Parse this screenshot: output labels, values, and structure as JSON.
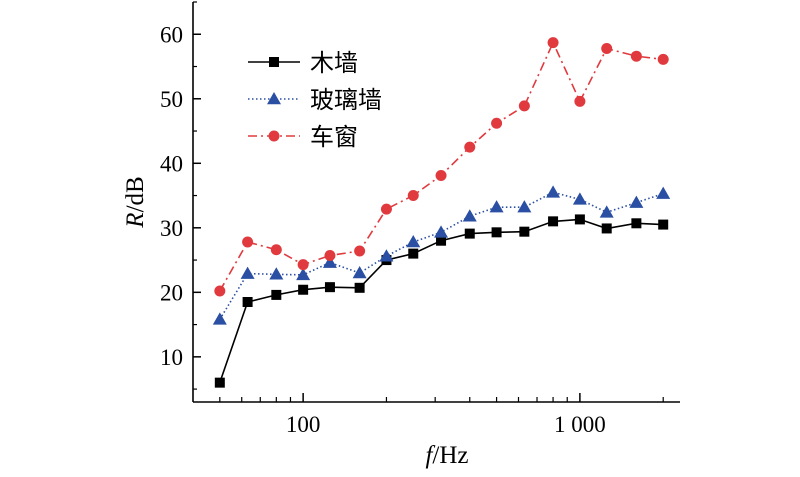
{
  "chart_data": {
    "type": "line",
    "title": "",
    "xlabel": {
      "italic": "f",
      "rest": "/Hz"
    },
    "ylabel": {
      "italic": "R",
      "rest": "/dB"
    },
    "x_scale": "log",
    "xlim": [
      40,
      2300
    ],
    "ylim": [
      3,
      65
    ],
    "x_ticks": [
      {
        "value": 100,
        "label": "100"
      },
      {
        "value": 1000,
        "label": "1 000"
      }
    ],
    "y_ticks": [
      {
        "value": 10,
        "label": "10"
      },
      {
        "value": 20,
        "label": "20"
      },
      {
        "value": 30,
        "label": "30"
      },
      {
        "value": 40,
        "label": "40"
      },
      {
        "value": 50,
        "label": "50"
      },
      {
        "value": 60,
        "label": "60"
      }
    ],
    "grid": false,
    "legend_position": "top-left",
    "x": [
      50,
      63,
      80,
      100,
      125,
      160,
      200,
      250,
      315,
      400,
      500,
      630,
      800,
      1000,
      1250,
      1600,
      2000
    ],
    "series": [
      {
        "name": "木墙",
        "color": "#000000",
        "line_style": "solid",
        "marker": "square",
        "values": [
          6.0,
          18.5,
          19.6,
          20.4,
          20.8,
          20.7,
          25.0,
          26.0,
          28.0,
          29.1,
          29.3,
          29.4,
          31.0,
          31.3,
          29.9,
          30.7,
          30.5
        ]
      },
      {
        "name": "玻璃墙",
        "color": "#2b4fa2",
        "line_style": "dotted",
        "marker": "triangle",
        "values": [
          15.8,
          22.9,
          22.8,
          22.7,
          24.6,
          23.0,
          25.6,
          27.8,
          29.3,
          31.8,
          33.2,
          33.2,
          35.5,
          34.4,
          32.4,
          33.9,
          35.3
        ]
      },
      {
        "name": "车窗",
        "color": "#e03a3e",
        "line_style": "dashdot",
        "marker": "circle",
        "values": [
          20.2,
          27.8,
          26.6,
          24.3,
          25.7,
          26.4,
          32.9,
          35.0,
          38.1,
          42.5,
          46.2,
          48.9,
          58.7,
          49.6,
          57.8,
          56.6,
          56.1
        ]
      }
    ]
  }
}
